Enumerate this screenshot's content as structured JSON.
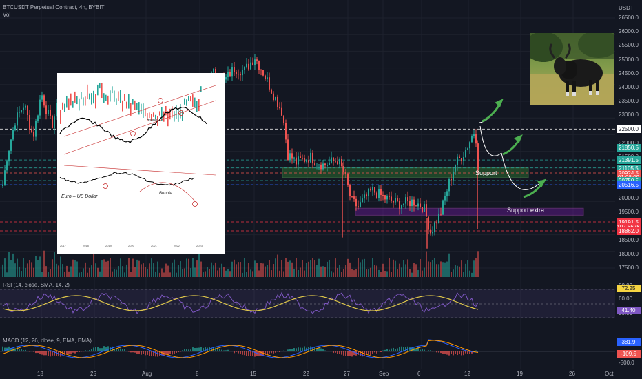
{
  "header": {
    "symbol_line": "BTCUSDT Perpetual Contract, 4h, BYBIT",
    "vol_label": "Vol",
    "currency": "USDT",
    "rsi_label": "RSI (14, close, SMA, 14, 2)",
    "macd_label": "MACD (12, 26, close, 9, EMA, EMA)"
  },
  "zones": {
    "support": "Support",
    "support_extra": "Support extra"
  },
  "price_axis": [
    "26500.0",
    "26000.0",
    "25500.0",
    "25000.0",
    "24500.0",
    "24000.0",
    "23500.0",
    "23000.0",
    "22000.0",
    "21500.0",
    "20500.0",
    "20000.0",
    "19500.0",
    "18500.0",
    "18000.0",
    "17500.0"
  ],
  "price_badges": [
    {
      "text": "22500.0",
      "bg": "#ffffff",
      "fg": "#131722",
      "price": 22500
    },
    {
      "text": "21850.5",
      "bg": "#26a69a",
      "fg": "#ffffff",
      "price": 21850
    },
    {
      "text": "21391.5",
      "bg": "#26a69a",
      "fg": "#ffffff",
      "price": 21390
    },
    {
      "text": "21105.5",
      "bg": "#26a69a",
      "fg": "#ffffff",
      "price": 21105
    },
    {
      "text": "20924.5",
      "bg": "#ef5350",
      "fg": "#ffffff",
      "price": 20920
    },
    {
      "text": "01:08:09",
      "bg": "#ef5350",
      "fg": "#ffffff",
      "price": 20780
    },
    {
      "text": "20750.5",
      "bg": "#26a69a",
      "fg": "#ffffff",
      "price": 20650
    },
    {
      "text": "20516.5",
      "bg": "#2962ff",
      "fg": "#ffffff",
      "price": 20500
    },
    {
      "text": "19191.5",
      "bg": "#f23645",
      "fg": "#ffffff",
      "price": 19160
    },
    {
      "text": "107.667K",
      "bg": "#f23645",
      "fg": "#ffffff",
      "price": 19000
    },
    {
      "text": "18862.0",
      "bg": "#f23645",
      "fg": "#ffffff",
      "price": 18840
    }
  ],
  "rsi_axis": [
    "80.00",
    "60.00",
    "20.00"
  ],
  "rsi_badges": [
    {
      "text": "72.25",
      "bg": "#f5d442",
      "fg": "#131722"
    },
    {
      "text": "41.40",
      "bg": "#7e57c2",
      "fg": "#ffffff"
    }
  ],
  "macd_axis": [
    "-500.0"
  ],
  "macd_badges": [
    {
      "text": "381.9",
      "bg": "#2962ff",
      "fg": "#ffffff"
    },
    {
      "text": "-109.5",
      "bg": "#ef5350",
      "fg": "#ffffff"
    }
  ],
  "date_axis": [
    "18",
    "25",
    "Aug",
    "8",
    "15",
    "22",
    "27",
    "Sep",
    "6",
    "12",
    "19",
    "26",
    "Oct"
  ],
  "colors": {
    "up": "#26a69a",
    "down": "#ef5350",
    "bg": "#131722",
    "grid": "#1e222d",
    "support_fill": "#2e7d32",
    "support_extra_fill": "#6a1b9a",
    "arrow": "#4caf50"
  },
  "inset_chart": {
    "labels": [
      "Euro – US Dollar",
      "Bubble",
      "Bubble"
    ],
    "year_ticks": [
      "2017",
      "2018",
      "2019",
      "2020",
      "2021",
      "2022",
      "2023"
    ]
  },
  "photo": {
    "icon": "bull-photo"
  },
  "chart_data": {
    "type": "candlestick",
    "symbol": "BTCUSDT",
    "timeframe": "4h",
    "ylim": [
      17000,
      27000
    ],
    "levels": [
      22500,
      21850.5,
      21391.5,
      21105.5,
      20924.5,
      20750.5,
      20516.5,
      19191.5,
      18862.0
    ],
    "support_zone": [
      20750,
      21100
    ],
    "support_extra_zone": [
      19400,
      19650
    ],
    "rsi": {
      "ylim": [
        20,
        80
      ],
      "last": 41.4,
      "sma": 72.25
    },
    "macd": {
      "last_macd": 381.9,
      "last_hist": -109.5
    }
  }
}
